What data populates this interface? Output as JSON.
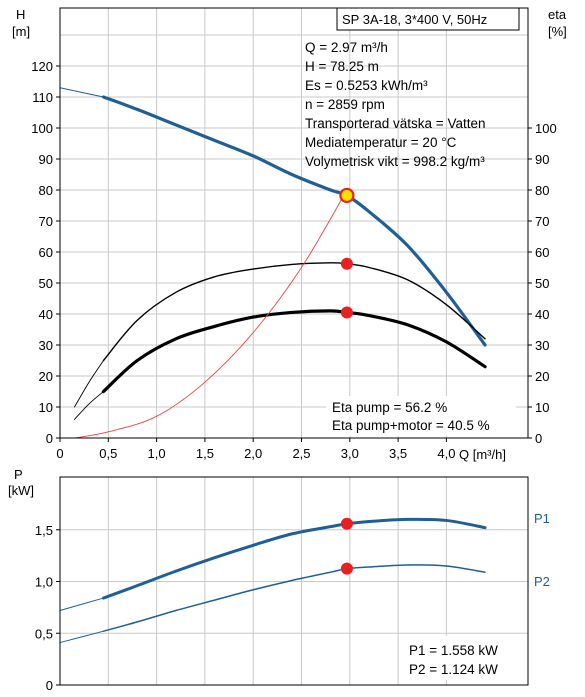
{
  "chart_data": [
    {
      "type": "line",
      "title": "SP 3A-18, 3*400 V, 50Hz",
      "ylabel_left": "H",
      "ylabel_left_unit": "[m]",
      "ylabel_right": "eta",
      "ylabel_right_unit": "[%]",
      "xlabel": "Q [m³/h]",
      "xlim": [
        0,
        4.5
      ],
      "ylim": [
        0,
        130
      ],
      "y2lim": [
        0,
        130
      ],
      "grid": true,
      "x_ticks": [
        "0",
        "0,5",
        "1,0",
        "1,5",
        "2,0",
        "2,5",
        "3,0",
        "3,5",
        "4,0"
      ],
      "y_ticks": [
        "0",
        "10",
        "20",
        "30",
        "40",
        "50",
        "60",
        "70",
        "80",
        "90",
        "100",
        "110",
        "120"
      ],
      "y2_ticks": [
        "0",
        "10",
        "20",
        "30",
        "40",
        "50",
        "60",
        "70",
        "80",
        "90",
        "100"
      ],
      "info_lines": [
        "Q = 2.97 m³/h",
        "H = 78.25 m",
        "Es = 0.5253 kWh/m³",
        "n = 2859 rpm",
        "Transporterad vätska = Vatten",
        "Mediatemperatur = 20 °C",
        "Volymetrisk vikt = 998.2 kg/m³"
      ],
      "eta_lines": [
        "Eta pump = 56.2 %",
        "Eta pump+motor = 40.5 %"
      ],
      "colors": {
        "head": "#1f5f96",
        "efficiency": "#000000",
        "system": "#e8463c",
        "marker": "#e8201f",
        "marker_fill": "#ffe200"
      },
      "series": [
        {
          "key": "head",
          "x": [
            0.45,
            0.8,
            1.2,
            1.6,
            2.0,
            2.4,
            2.8,
            2.97,
            3.2,
            3.6,
            4.0,
            4.4
          ],
          "y": [
            110,
            106,
            101,
            96,
            91,
            85,
            80,
            78.25,
            73,
            62,
            47,
            30
          ]
        },
        {
          "key": "head_ext",
          "x": [
            0,
            0.45
          ],
          "y": [
            113,
            110
          ]
        },
        {
          "key": "eta_pump",
          "x": [
            0.45,
            0.8,
            1.2,
            1.6,
            2.0,
            2.4,
            2.8,
            2.97,
            3.2,
            3.6,
            4.0,
            4.4
          ],
          "y": [
            25,
            38,
            47,
            52,
            54.5,
            56,
            56.5,
            56.2,
            55,
            51,
            43,
            32
          ]
        },
        {
          "key": "eta_pump_ext",
          "x": [
            0.15,
            0.3,
            0.45
          ],
          "y": [
            10,
            18,
            25
          ]
        },
        {
          "key": "eta_total",
          "x": [
            0.45,
            0.8,
            1.2,
            1.6,
            2.0,
            2.4,
            2.8,
            2.97,
            3.2,
            3.6,
            4.0,
            4.4
          ],
          "y": [
            15,
            25,
            32,
            36,
            39,
            40.5,
            41,
            40.5,
            39.5,
            36.5,
            31,
            23
          ]
        },
        {
          "key": "eta_total_ext",
          "x": [
            0.15,
            0.3,
            0.45
          ],
          "y": [
            6,
            11,
            15
          ]
        },
        {
          "key": "system",
          "x": [
            0.15,
            0.5,
            1.0,
            1.5,
            2.0,
            2.5,
            2.97
          ],
          "y": [
            0,
            2,
            7,
            18,
            34,
            55,
            80
          ]
        }
      ],
      "duty_point": {
        "Q": 2.97,
        "H": 78.25,
        "eta_pump": 56.2,
        "eta_pump_motor": 40.5
      }
    },
    {
      "type": "line",
      "ylabel": "P",
      "ylabel_unit": "[kW]",
      "xlim": [
        0,
        4.5
      ],
      "ylim": [
        0,
        2.0
      ],
      "grid": true,
      "y_ticks": [
        "0",
        "0,5",
        "1,0",
        "1,5"
      ],
      "series": [
        {
          "name": "P1",
          "x": [
            0.45,
            0.8,
            1.2,
            1.6,
            2.0,
            2.4,
            2.8,
            2.97,
            3.2,
            3.6,
            4.0,
            4.4
          ],
          "y": [
            0.84,
            0.96,
            1.1,
            1.23,
            1.35,
            1.46,
            1.53,
            1.558,
            1.58,
            1.6,
            1.59,
            1.52
          ]
        },
        {
          "name": "P1_ext",
          "x": [
            0,
            0.45
          ],
          "y": [
            0.72,
            0.84
          ]
        },
        {
          "name": "P2",
          "x": [
            0.45,
            0.8,
            1.2,
            1.6,
            2.0,
            2.4,
            2.8,
            2.97,
            3.2,
            3.6,
            4.0,
            4.4
          ],
          "y": [
            0.52,
            0.61,
            0.72,
            0.82,
            0.92,
            1.01,
            1.09,
            1.124,
            1.14,
            1.16,
            1.15,
            1.09
          ]
        },
        {
          "name": "P2_ext",
          "x": [
            0,
            0.45
          ],
          "y": [
            0.41,
            0.52
          ]
        }
      ],
      "labels": {
        "p1": "P1",
        "p2": "P2"
      },
      "info_lines": [
        "P1 = 1.558 kW",
        "P2 = 1.124 kW"
      ],
      "duty_point": {
        "Q": 2.97,
        "P1": 1.558,
        "P2": 1.124
      }
    }
  ]
}
